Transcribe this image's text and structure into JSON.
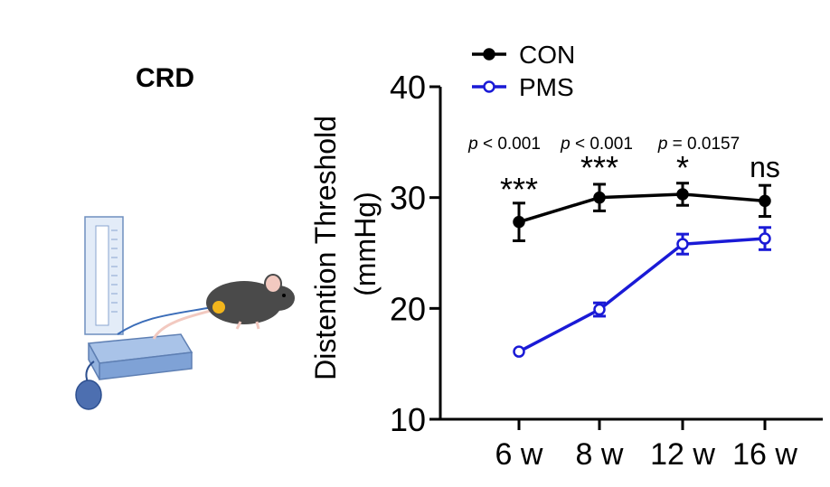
{
  "panel": {
    "title": "CRD"
  },
  "illustration": {
    "icons": [
      "sphygmomanometer-icon",
      "mouse-icon"
    ]
  },
  "chart_data": {
    "type": "line",
    "title": "",
    "ylabel_line1": "Distention Threshold",
    "ylabel_line2": "(mmHg)",
    "xlabel": "",
    "categories": [
      "6 w",
      "8 w",
      "12 w",
      "16 w"
    ],
    "ylim": [
      10,
      40
    ],
    "yticks": [
      "10",
      "20",
      "30",
      "40"
    ],
    "legend": {
      "placement": "top-left",
      "entries": [
        "CON",
        "PMS"
      ]
    },
    "series": [
      {
        "name": "CON",
        "color": "#000000",
        "marker": "filled-circle",
        "values": [
          27.8,
          30.0,
          30.3,
          29.7
        ],
        "errors": [
          1.7,
          1.2,
          1.0,
          1.4
        ]
      },
      {
        "name": "PMS",
        "color": "#1a1ad6",
        "marker": "open-circle",
        "values": [
          16.1,
          19.9,
          25.8,
          26.3
        ],
        "errors": [
          0.3,
          0.6,
          0.9,
          1.0
        ]
      }
    ],
    "annotations": {
      "pvalues": [
        "p < 0.001",
        "p < 0.001",
        "p = 0.0157",
        ""
      ],
      "significance": [
        "***",
        "***",
        "*",
        "ns"
      ]
    },
    "grid": false
  }
}
